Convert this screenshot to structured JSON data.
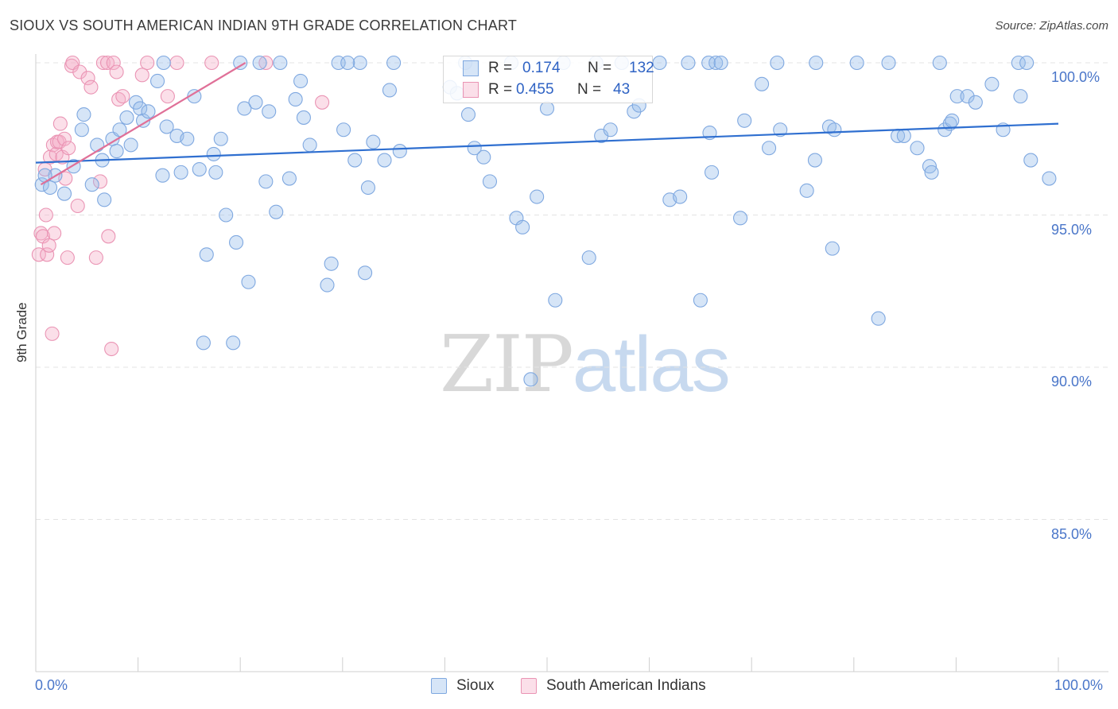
{
  "header": {
    "title": "SIOUX VS SOUTH AMERICAN INDIAN 9TH GRADE CORRELATION CHART",
    "source": "Source: ZipAtlas.com"
  },
  "colors": {
    "sioux": "#7fa8e0",
    "sioux_fill": "rgba(153,190,235,0.40)",
    "sioux_line": "#2f6fd0",
    "sam": "#ea94b4",
    "sam_fill": "rgba(244,175,200,0.40)",
    "sam_line": "#e07098",
    "axis_text": "#4a76c9",
    "grid": "#e3e3e3"
  },
  "legend_top": {
    "sioux": {
      "r_label": "R =",
      "r_value": "0.174",
      "n_label": "N =",
      "n_value": "132"
    },
    "sam": {
      "r_label": "R =",
      "r_value": "0.455",
      "n_label": "N =",
      "n_value": "43"
    }
  },
  "watermark": {
    "zip": "ZIP",
    "atlas": "atlas"
  },
  "chart_data": {
    "type": "scatter",
    "title": "SIOUX VS SOUTH AMERICAN INDIAN 9TH GRADE CORRELATION CHART",
    "xlabel": "",
    "ylabel": "9th Grade",
    "xlim": [
      0,
      100
    ],
    "ylim": [
      80.3,
      100.7
    ],
    "x_tick_labels": [
      "0.0%",
      "100.0%"
    ],
    "y_ticks": [
      85,
      90,
      95,
      100
    ],
    "y_tick_labels": [
      "85.0%",
      "90.0%",
      "95.0%",
      "100.0%"
    ],
    "legend": [
      "Sioux",
      "South American Indians"
    ],
    "series": [
      {
        "name": "Sioux",
        "trend": {
          "x": [
            0,
            100
          ],
          "y": [
            96.72,
            98.0
          ]
        },
        "points": [
          [
            0.6,
            96.0
          ],
          [
            1.4,
            95.9
          ],
          [
            1.9,
            96.3
          ],
          [
            2.8,
            95.7
          ],
          [
            3.7,
            96.6
          ],
          [
            4.5,
            97.8
          ],
          [
            4.7,
            98.3
          ],
          [
            5.5,
            96.0
          ],
          [
            6.0,
            97.3
          ],
          [
            6.5,
            96.8
          ],
          [
            6.7,
            95.5
          ],
          [
            7.5,
            97.5
          ],
          [
            7.9,
            97.1
          ],
          [
            8.2,
            97.8
          ],
          [
            8.9,
            98.2
          ],
          [
            9.3,
            97.3
          ],
          [
            9.8,
            98.7
          ],
          [
            10.2,
            98.5
          ],
          [
            10.5,
            98.1
          ],
          [
            11.0,
            98.4
          ],
          [
            11.9,
            99.4
          ],
          [
            12.4,
            96.3
          ],
          [
            12.8,
            97.9
          ],
          [
            13.8,
            97.6
          ],
          [
            14.2,
            96.4
          ],
          [
            14.8,
            97.5
          ],
          [
            15.5,
            98.9
          ],
          [
            16.0,
            96.5
          ],
          [
            16.4,
            90.8
          ],
          [
            16.7,
            93.7
          ],
          [
            17.4,
            97.0
          ],
          [
            17.6,
            96.4
          ],
          [
            18.1,
            97.5
          ],
          [
            18.6,
            95.0
          ],
          [
            19.3,
            90.8
          ],
          [
            19.6,
            94.1
          ],
          [
            20.4,
            98.5
          ],
          [
            20.8,
            92.8
          ],
          [
            21.5,
            98.7
          ],
          [
            21.9,
            100.0
          ],
          [
            22.5,
            96.1
          ],
          [
            22.8,
            98.4
          ],
          [
            23.5,
            95.1
          ],
          [
            23.9,
            100.0
          ],
          [
            24.8,
            96.2
          ],
          [
            25.4,
            98.8
          ],
          [
            25.9,
            99.4
          ],
          [
            26.2,
            98.2
          ],
          [
            26.8,
            97.3
          ],
          [
            28.5,
            92.7
          ],
          [
            28.9,
            93.4
          ],
          [
            29.6,
            100.0
          ],
          [
            30.1,
            97.8
          ],
          [
            31.2,
            96.8
          ],
          [
            31.7,
            100.0
          ],
          [
            32.2,
            93.1
          ],
          [
            32.5,
            95.9
          ],
          [
            33.0,
            97.4
          ],
          [
            34.1,
            96.8
          ],
          [
            34.6,
            99.1
          ],
          [
            35.0,
            100.0
          ],
          [
            35.6,
            97.1
          ],
          [
            40.5,
            99.2
          ],
          [
            41.2,
            99.0
          ],
          [
            42.0,
            100.0
          ],
          [
            42.3,
            98.3
          ],
          [
            42.9,
            97.2
          ],
          [
            43.8,
            96.9
          ],
          [
            44.4,
            96.1
          ],
          [
            46.5,
            100.0
          ],
          [
            47.0,
            94.9
          ],
          [
            47.6,
            94.6
          ],
          [
            48.4,
            89.6
          ],
          [
            49.0,
            95.6
          ],
          [
            50.0,
            98.5
          ],
          [
            50.8,
            92.2
          ],
          [
            51.6,
            100.0
          ],
          [
            54.1,
            93.6
          ],
          [
            54.8,
            100.0
          ],
          [
            55.3,
            97.6
          ],
          [
            56.2,
            97.8
          ],
          [
            57.3,
            100.0
          ],
          [
            58.5,
            98.4
          ],
          [
            59.0,
            98.6
          ],
          [
            61.0,
            100.0
          ],
          [
            62.0,
            95.5
          ],
          [
            63.0,
            95.6
          ],
          [
            63.8,
            100.0
          ],
          [
            65.0,
            92.2
          ],
          [
            65.8,
            100.0
          ],
          [
            65.9,
            97.7
          ],
          [
            66.1,
            96.4
          ],
          [
            68.9,
            94.9
          ],
          [
            69.3,
            98.1
          ],
          [
            71.0,
            99.3
          ],
          [
            71.7,
            97.2
          ],
          [
            72.8,
            97.8
          ],
          [
            75.4,
            95.8
          ],
          [
            76.2,
            96.8
          ],
          [
            76.3,
            100.0
          ],
          [
            77.6,
            97.9
          ],
          [
            77.9,
            93.9
          ],
          [
            78.1,
            97.8
          ],
          [
            80.3,
            100.0
          ],
          [
            82.4,
            91.6
          ],
          [
            83.4,
            100.0
          ],
          [
            84.3,
            97.6
          ],
          [
            84.9,
            97.6
          ],
          [
            86.2,
            97.2
          ],
          [
            87.4,
            96.6
          ],
          [
            87.6,
            96.4
          ],
          [
            88.4,
            100.0
          ],
          [
            88.9,
            97.8
          ],
          [
            89.4,
            98.0
          ],
          [
            89.6,
            98.1
          ],
          [
            90.1,
            98.9
          ],
          [
            91.1,
            98.9
          ],
          [
            91.9,
            98.7
          ],
          [
            93.5,
            99.3
          ],
          [
            94.6,
            97.8
          ],
          [
            96.1,
            100.0
          ],
          [
            96.3,
            98.9
          ],
          [
            96.9,
            100.0
          ],
          [
            97.3,
            96.8
          ],
          [
            99.1,
            96.2
          ],
          [
            66.5,
            100.0
          ],
          [
            67.0,
            100.0
          ],
          [
            72.5,
            100.0
          ],
          [
            12.5,
            100.0
          ],
          [
            20.0,
            100.0
          ],
          [
            30.5,
            100.0
          ],
          [
            0.9,
            96.3
          ]
        ]
      },
      {
        "name": "South American Indians",
        "trend": {
          "x": [
            0.5,
            20.5
          ],
          "y": [
            96.0,
            100.0
          ]
        },
        "points": [
          [
            0.3,
            93.7
          ],
          [
            0.5,
            94.4
          ],
          [
            0.7,
            94.3
          ],
          [
            0.9,
            96.5
          ],
          [
            1.0,
            95.0
          ],
          [
            1.1,
            93.7
          ],
          [
            1.3,
            94.0
          ],
          [
            1.4,
            96.9
          ],
          [
            1.6,
            91.1
          ],
          [
            1.7,
            97.3
          ],
          [
            1.8,
            94.4
          ],
          [
            2.0,
            97.0
          ],
          [
            2.1,
            97.4
          ],
          [
            2.3,
            97.4
          ],
          [
            2.4,
            98.0
          ],
          [
            2.6,
            96.9
          ],
          [
            2.8,
            97.5
          ],
          [
            2.9,
            96.2
          ],
          [
            3.1,
            93.6
          ],
          [
            3.2,
            97.2
          ],
          [
            3.5,
            99.9
          ],
          [
            3.6,
            100.0
          ],
          [
            4.1,
            95.3
          ],
          [
            4.3,
            99.7
          ],
          [
            5.1,
            99.5
          ],
          [
            5.4,
            99.2
          ],
          [
            5.9,
            93.6
          ],
          [
            6.3,
            96.1
          ],
          [
            6.6,
            100.0
          ],
          [
            7.0,
            100.0
          ],
          [
            7.1,
            94.3
          ],
          [
            7.4,
            90.6
          ],
          [
            7.6,
            100.0
          ],
          [
            7.9,
            99.7
          ],
          [
            8.1,
            98.8
          ],
          [
            8.5,
            98.9
          ],
          [
            10.4,
            99.6
          ],
          [
            10.9,
            100.0
          ],
          [
            12.9,
            98.9
          ],
          [
            13.8,
            100.0
          ],
          [
            17.2,
            100.0
          ],
          [
            22.5,
            100.0
          ],
          [
            28.0,
            98.7
          ]
        ]
      }
    ]
  }
}
